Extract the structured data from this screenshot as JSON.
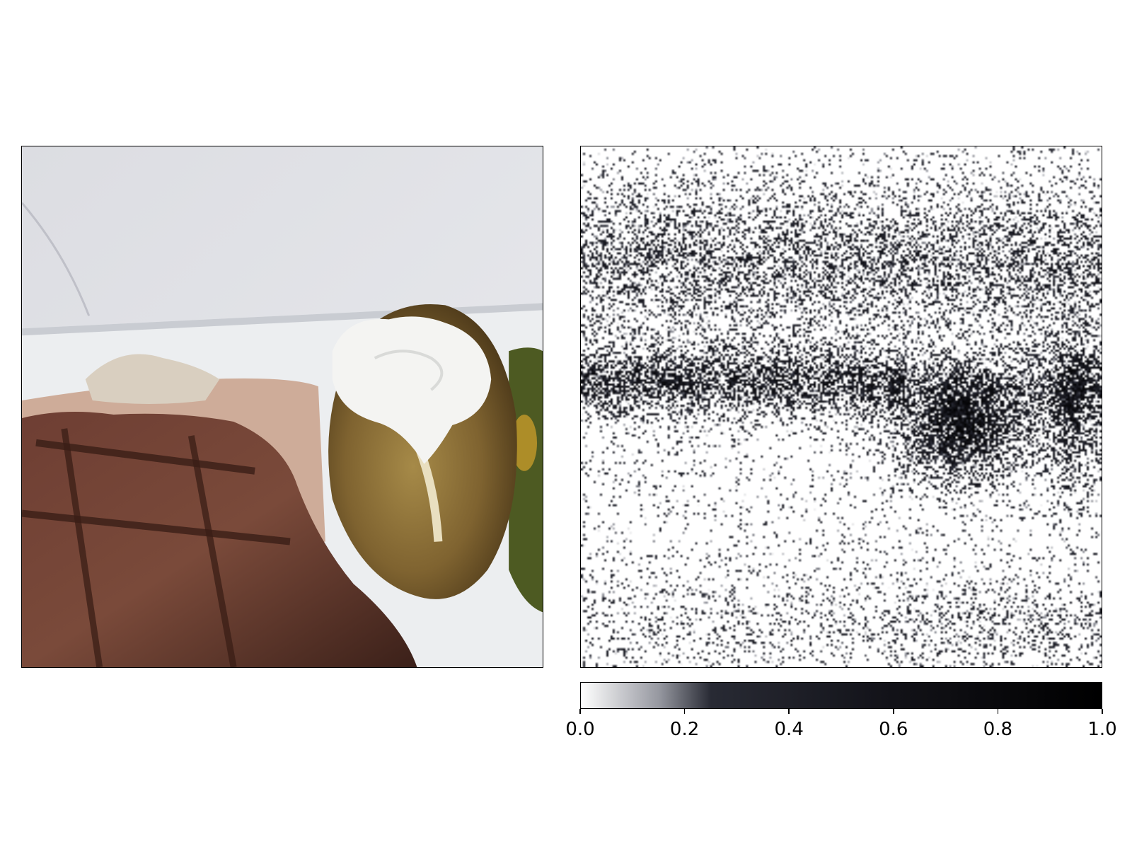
{
  "chart_data": [
    {
      "type": "image",
      "title": "",
      "subject": "grilled steak with baked potato and sour cream",
      "colors": {
        "background": "#e6e6ea",
        "plate": "#eceef0",
        "steak": "#6b3f30",
        "potato": "#8a6b35",
        "cream": "#f4f4f2"
      }
    },
    {
      "type": "heatmap",
      "title": "",
      "colormap": "white-to-black (bone_r)",
      "colorbar": {
        "vmin": 0.0,
        "vmax": 1.0,
        "ticks": [
          "0.0",
          "0.2",
          "0.4",
          "0.6",
          "0.8",
          "1.0"
        ],
        "orientation": "horizontal",
        "placement": "below"
      },
      "high_attribution_regions": [
        {
          "name": "plate-rim-band",
          "intensity": 0.6
        },
        {
          "name": "sour-cream-top",
          "intensity": 0.9
        },
        {
          "name": "right-edge-vegetables",
          "intensity": 0.6
        },
        {
          "name": "background-upper",
          "intensity": 0.35
        },
        {
          "name": "lower-plate",
          "intensity": 0.15
        }
      ]
    }
  ]
}
